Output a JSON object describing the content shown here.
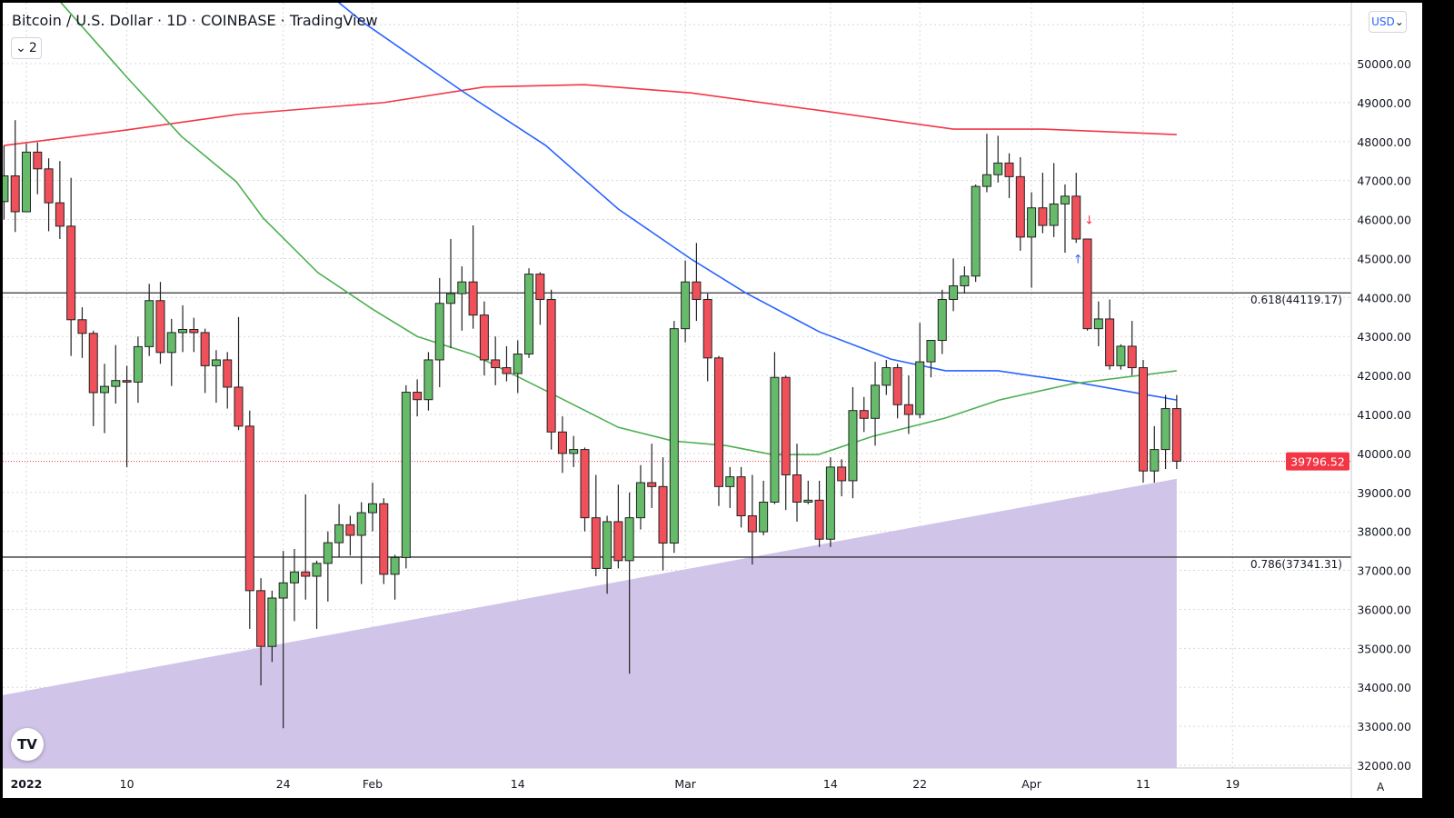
{
  "header": {
    "title": "Bitcoin / U.S. Dollar · 1D · COINBASE · TradingView",
    "collapse_count": "2",
    "currency_button": "USD"
  },
  "footer": {
    "auto_scale_button": "A",
    "logo": "TV"
  },
  "colors": {
    "up": "#66bb6a",
    "down": "#f0505a",
    "ma_red": "#f23645",
    "ma_blue": "#2962ff",
    "ma_green": "#4caf50",
    "wedge": "#d1c4e9",
    "price_label": "#f23645"
  },
  "chart_data": {
    "type": "candlestick",
    "title": "Bitcoin / U.S. Dollar · 1D · COINBASE",
    "ylim": [
      32000,
      51000
    ],
    "yticks": [
      "50000.00",
      "49000.00",
      "48000.00",
      "47000.00",
      "46000.00",
      "45000.00",
      "44000.00",
      "43000.00",
      "42000.00",
      "41000.00",
      "40000.00",
      "39000.00",
      "38000.00",
      "37000.00",
      "36000.00",
      "35000.00",
      "34000.00",
      "33000.00",
      "32000.00"
    ],
    "xticks": [
      {
        "label": "2022",
        "day": 0,
        "bold": true
      },
      {
        "label": "10",
        "day": 9
      },
      {
        "label": "24",
        "day": 23
      },
      {
        "label": "Feb",
        "day": 31
      },
      {
        "label": "14",
        "day": 44
      },
      {
        "label": "Mar",
        "day": 59
      },
      {
        "label": "14",
        "day": 72
      },
      {
        "label": "22",
        "day": 80
      },
      {
        "label": "Apr",
        "day": 90
      },
      {
        "label": "11",
        "day": 100
      },
      {
        "label": "19",
        "day": 108
      }
    ],
    "first_day": -2,
    "candles": [
      [
        "Dec 30",
        46460,
        47900,
        46000,
        47120
      ],
      [
        "Dec 31",
        47120,
        48550,
        45680,
        46200
      ],
      [
        "Jan 1",
        46200,
        47950,
        46200,
        47730
      ],
      [
        "Jan 2",
        47730,
        47980,
        46650,
        47300
      ],
      [
        "Jan 3",
        47300,
        47570,
        45700,
        46430
      ],
      [
        "Jan 4",
        46430,
        47500,
        45500,
        45830
      ],
      [
        "Jan 5",
        45830,
        47070,
        42500,
        43430
      ],
      [
        "Jan 6",
        43430,
        43750,
        42450,
        43080
      ],
      [
        "Jan 7",
        43080,
        43150,
        40700,
        41560
      ],
      [
        "Jan 8",
        41560,
        42300,
        40520,
        41720
      ],
      [
        "Jan 9",
        41720,
        42780,
        41280,
        41870
      ],
      [
        "Jan 10",
        41870,
        42250,
        39650,
        41830
      ],
      [
        "Jan 11",
        41830,
        43000,
        41300,
        42740
      ],
      [
        "Jan 12",
        42740,
        44350,
        42500,
        43920
      ],
      [
        "Jan 13",
        43920,
        44400,
        42300,
        42590
      ],
      [
        "Jan 14",
        42590,
        43450,
        41730,
        43100
      ],
      [
        "Jan 15",
        43100,
        43800,
        42600,
        43180
      ],
      [
        "Jan 16",
        43180,
        43480,
        42600,
        43100
      ],
      [
        "Jan 17",
        43100,
        43200,
        41550,
        42250
      ],
      [
        "Jan 18",
        42250,
        42650,
        41300,
        42400
      ],
      [
        "Jan 19",
        42400,
        42600,
        41150,
        41700
      ],
      [
        "Jan 20",
        41700,
        43500,
        40600,
        40700
      ],
      [
        "Jan 21",
        40700,
        41100,
        35500,
        36480
      ],
      [
        "Jan 22",
        36480,
        36800,
        34050,
        35050
      ],
      [
        "Jan 23",
        35050,
        36480,
        34650,
        36290
      ],
      [
        "Jan 24",
        36290,
        37500,
        32950,
        36680
      ],
      [
        "Jan 25",
        36680,
        37550,
        35700,
        36960
      ],
      [
        "Jan 26",
        36960,
        38950,
        36250,
        36850
      ],
      [
        "Jan 27",
        36850,
        37250,
        35500,
        37180
      ],
      [
        "Jan 28",
        37180,
        38000,
        36200,
        37710
      ],
      [
        "Jan 29",
        37710,
        38700,
        37350,
        38170
      ],
      [
        "Jan 30",
        38170,
        38400,
        37380,
        37900
      ],
      [
        "Jan 31",
        37900,
        38750,
        36650,
        38480
      ],
      [
        "Feb 1",
        38480,
        39250,
        38000,
        38710
      ],
      [
        "Feb 2",
        38710,
        38850,
        36650,
        36900
      ],
      [
        "Feb 3",
        36900,
        37400,
        36250,
        37330
      ],
      [
        "Feb 4",
        37330,
        41750,
        37050,
        41570
      ],
      [
        "Feb 5",
        41570,
        41900,
        40950,
        41380
      ],
      [
        "Feb 6",
        41380,
        42600,
        41100,
        42400
      ],
      [
        "Feb 7",
        42400,
        44500,
        41700,
        43850
      ],
      [
        "Feb 8",
        43850,
        45500,
        42700,
        44100
      ],
      [
        "Feb 9",
        44100,
        44800,
        43150,
        44400
      ],
      [
        "Feb 10",
        44400,
        45850,
        43200,
        43550
      ],
      [
        "Feb 11",
        43550,
        43900,
        42000,
        42400
      ],
      [
        "Feb 12",
        42400,
        43000,
        41750,
        42200
      ],
      [
        "Feb 13",
        42200,
        42750,
        41850,
        42050
      ],
      [
        "Feb 14",
        42050,
        42900,
        41550,
        42550
      ],
      [
        "Feb 15",
        42550,
        44750,
        42450,
        44600
      ],
      [
        "Feb 16",
        44600,
        44650,
        43300,
        43950
      ],
      [
        "Feb 17",
        43950,
        44200,
        40100,
        40550
      ],
      [
        "Feb 18",
        40550,
        40950,
        39500,
        40000
      ],
      [
        "Feb 19",
        40000,
        40450,
        39650,
        40100
      ],
      [
        "Feb 20",
        40100,
        40150,
        38000,
        38350
      ],
      [
        "Feb 21",
        38350,
        39450,
        36850,
        37050
      ],
      [
        "Feb 22",
        37050,
        38400,
        36400,
        38250
      ],
      [
        "Feb 23",
        38250,
        39200,
        37050,
        37250
      ],
      [
        "Feb 24",
        37250,
        39000,
        34350,
        38350
      ],
      [
        "Feb 25",
        38350,
        39700,
        38050,
        39250
      ],
      [
        "Feb 26",
        39250,
        40250,
        38600,
        39150
      ],
      [
        "Feb 27",
        39150,
        39900,
        37000,
        37700
      ],
      [
        "Feb 28",
        37700,
        43400,
        37450,
        43200
      ],
      [
        "Mar 1",
        43200,
        44950,
        42850,
        44400
      ],
      [
        "Mar 2",
        44400,
        45400,
        43400,
        43950
      ],
      [
        "Mar 3",
        43950,
        44100,
        41850,
        42450
      ],
      [
        "Mar 4",
        42450,
        42500,
        38650,
        39150
      ],
      [
        "Mar 5",
        39150,
        39650,
        38600,
        39400
      ],
      [
        "Mar 6",
        39400,
        39650,
        38100,
        38400
      ],
      [
        "Mar 7",
        38400,
        39450,
        37150,
        37990
      ],
      [
        "Mar 8",
        37990,
        39300,
        37900,
        38750
      ],
      [
        "Mar 9",
        38750,
        42600,
        38700,
        41950
      ],
      [
        "Mar 10",
        41950,
        42000,
        38550,
        39450
      ],
      [
        "Mar 11",
        39450,
        40250,
        38250,
        38750
      ],
      [
        "Mar 12",
        38750,
        39300,
        38700,
        38800
      ],
      [
        "Mar 13",
        38800,
        39300,
        37600,
        37800
      ],
      [
        "Mar 14",
        37800,
        39900,
        37600,
        39650
      ],
      [
        "Mar 15",
        39650,
        39850,
        38900,
        39300
      ],
      [
        "Mar 16",
        39300,
        41700,
        38850,
        41100
      ],
      [
        "Mar 17",
        41100,
        41450,
        40550,
        40900
      ],
      [
        "Mar 18",
        40900,
        42350,
        40200,
        41750
      ],
      [
        "Mar 19",
        41750,
        42400,
        41500,
        42200
      ],
      [
        "Mar 20",
        42200,
        42300,
        40900,
        41250
      ],
      [
        "Mar 21",
        41250,
        42000,
        40500,
        41000
      ],
      [
        "Mar 22",
        41000,
        43350,
        40900,
        42350
      ],
      [
        "Mar 23",
        42350,
        42900,
        41950,
        42900
      ],
      [
        "Mar 24",
        42900,
        44200,
        42550,
        43950
      ],
      [
        "Mar 25",
        43950,
        45000,
        43650,
        44300
      ],
      [
        "Mar 26",
        44300,
        44800,
        44100,
        44550
      ],
      [
        "Mar 27",
        44550,
        46900,
        44400,
        46850
      ],
      [
        "Mar 28",
        46850,
        48200,
        46700,
        47150
      ],
      [
        "Mar 29",
        47150,
        48150,
        46950,
        47450
      ],
      [
        "Mar 30",
        47450,
        47700,
        46550,
        47100
      ],
      [
        "Mar 31",
        47100,
        47600,
        45200,
        45550
      ],
      [
        "Apr 1",
        45550,
        46700,
        44250,
        46300
      ],
      [
        "Apr 2",
        46300,
        47200,
        45650,
        45850
      ],
      [
        "Apr 3",
        45850,
        47450,
        45550,
        46400
      ],
      [
        "Apr 4",
        46400,
        46900,
        45150,
        46600
      ],
      [
        "Apr 5",
        46600,
        47200,
        45400,
        45500
      ],
      [
        "Apr 6",
        45500,
        45500,
        43150,
        43200
      ],
      [
        "Apr 7",
        43200,
        43900,
        42750,
        43450
      ],
      [
        "Apr 8",
        43450,
        43950,
        42150,
        42250
      ],
      [
        "Apr 9",
        42250,
        42800,
        42150,
        42750
      ],
      [
        "Apr 10",
        42750,
        43400,
        42000,
        42200
      ],
      [
        "Apr 11",
        42200,
        42400,
        39250,
        39550
      ],
      [
        "Apr 12",
        39550,
        40700,
        39250,
        40100
      ],
      [
        "Apr 13",
        40100,
        41500,
        39600,
        41150
      ],
      [
        "Apr 14",
        41150,
        41500,
        39600,
        39800
      ]
    ],
    "moving_averages": [
      {
        "name": "MA red",
        "color": "#f23645",
        "points": [
          [
            -2,
            47900
          ],
          [
            9,
            48300
          ],
          [
            19,
            48700
          ],
          [
            32,
            49000
          ],
          [
            41,
            49400
          ],
          [
            50,
            49460
          ],
          [
            59.5,
            49250
          ],
          [
            71,
            48800
          ],
          [
            83,
            48320
          ],
          [
            91,
            48320
          ],
          [
            103,
            48180
          ]
        ]
      },
      {
        "name": "MA blue",
        "color": "#2962ff",
        "points": [
          [
            27.7,
            51630
          ],
          [
            30.2,
            51050
          ],
          [
            39,
            49300
          ],
          [
            46.5,
            47900
          ],
          [
            53,
            46270
          ],
          [
            59.5,
            44990
          ],
          [
            64.4,
            44120
          ],
          [
            71,
            43120
          ],
          [
            77.4,
            42420
          ],
          [
            82.3,
            42120
          ],
          [
            87,
            42120
          ],
          [
            93.7,
            41840
          ],
          [
            103,
            41370
          ]
        ]
      },
      {
        "name": "MA green",
        "color": "#4caf50",
        "points": [
          [
            2.9,
            51630
          ],
          [
            9,
            49650
          ],
          [
            13.9,
            48130
          ],
          [
            18.8,
            46970
          ],
          [
            21.2,
            46040
          ],
          [
            26.1,
            44640
          ],
          [
            31,
            43700
          ],
          [
            35,
            43000
          ],
          [
            40,
            42540
          ],
          [
            46.5,
            41610
          ],
          [
            53,
            40670
          ],
          [
            57.9,
            40320
          ],
          [
            62.7,
            40200
          ],
          [
            66.8,
            39970
          ],
          [
            70.9,
            39970
          ],
          [
            75.8,
            40440
          ],
          [
            82.3,
            40910
          ],
          [
            87.1,
            41370
          ],
          [
            93.7,
            41790
          ],
          [
            103,
            42120
          ]
        ]
      }
    ],
    "support_wedge": {
      "start": [
        -2.4,
        33800
      ],
      "end": [
        103,
        39350
      ],
      "floor": 32000
    },
    "fib_levels": [
      {
        "label": "0.618(44119.17)",
        "price": 44119.17
      },
      {
        "label": "0.786(37341.31)",
        "price": 37341.31
      }
    ],
    "last_price": {
      "label": "39796.52",
      "price": 39796.52
    },
    "signals": [
      {
        "type": "sell",
        "symbol": "↓",
        "day": 95,
        "price": 46000
      },
      {
        "type": "buy",
        "symbol": "↑",
        "day": 94,
        "price": 45000
      }
    ]
  }
}
